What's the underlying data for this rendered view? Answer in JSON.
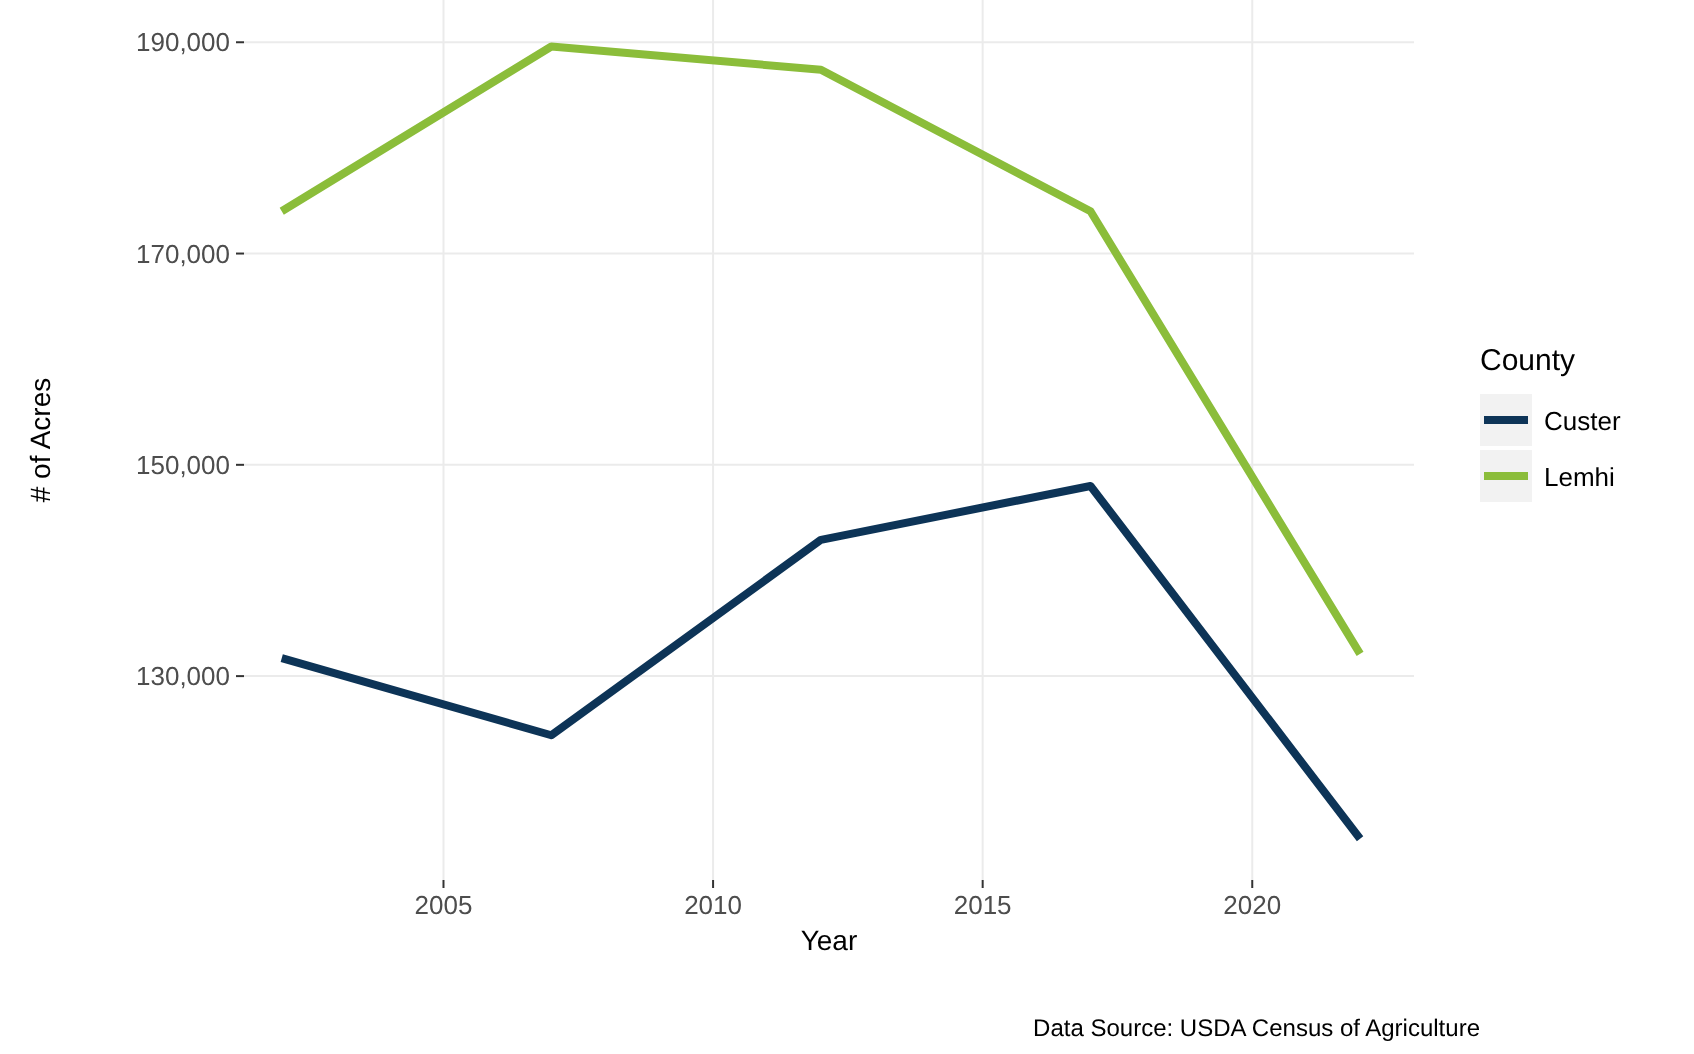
{
  "chart_data": {
    "type": "line",
    "xlabel": "Year",
    "ylabel": "# of Acres",
    "legend_title": "County",
    "legend": "right",
    "grid": true,
    "x": [
      2002,
      2007,
      2012,
      2017,
      2022
    ],
    "xlim": [
      2001.3,
      2023
    ],
    "xticks": [
      2005,
      2010,
      2015,
      2020
    ],
    "ylim": [
      110700,
      194000
    ],
    "yticks": [
      {
        "value": 130000,
        "label": "130,000"
      },
      {
        "value": 150000,
        "label": "150,000"
      },
      {
        "value": 170000,
        "label": "170,000"
      },
      {
        "value": 190000,
        "label": "190,000"
      }
    ],
    "series": [
      {
        "name": "Custer",
        "color": "#0d3457",
        "values": [
          131700,
          124400,
          142900,
          148000,
          114600
        ]
      },
      {
        "name": "Lemhi",
        "color": "#8bbd3a",
        "values": [
          174000,
          189600,
          187400,
          174000,
          132100
        ]
      }
    ],
    "annotations": [
      "Data Source: USDA Census of Agriculture"
    ]
  }
}
